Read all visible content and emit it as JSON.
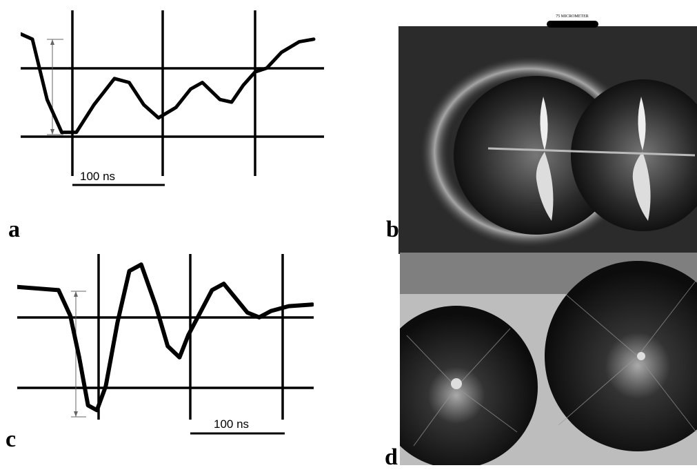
{
  "panels": {
    "a": {
      "label": "a",
      "scale_bar": "100 ns",
      "trace": [
        [
          0,
          0.18
        ],
        [
          0.04,
          0.22
        ],
        [
          0.09,
          0.68
        ],
        [
          0.14,
          0.93
        ],
        [
          0.19,
          0.93
        ],
        [
          0.25,
          0.72
        ],
        [
          0.32,
          0.52
        ],
        [
          0.37,
          0.55
        ],
        [
          0.42,
          0.72
        ],
        [
          0.47,
          0.82
        ],
        [
          0.53,
          0.74
        ],
        [
          0.58,
          0.6
        ],
        [
          0.62,
          0.55
        ],
        [
          0.68,
          0.68
        ],
        [
          0.72,
          0.7
        ],
        [
          0.76,
          0.57
        ],
        [
          0.8,
          0.47
        ],
        [
          0.84,
          0.44
        ],
        [
          0.89,
          0.32
        ],
        [
          0.95,
          0.24
        ],
        [
          1,
          0.22
        ]
      ]
    },
    "b": {
      "label": "b",
      "scale_bar_caption": "75 MICROMETER",
      "description": "crystallite spherulites, micrograph"
    },
    "c": {
      "label": "c",
      "scale_bar": "100 ns",
      "trace": [
        [
          0,
          0.18
        ],
        [
          0.14,
          0.2
        ],
        [
          0.18,
          0.36
        ],
        [
          0.21,
          0.62
        ],
        [
          0.24,
          0.92
        ],
        [
          0.27,
          0.95
        ],
        [
          0.3,
          0.8
        ],
        [
          0.34,
          0.4
        ],
        [
          0.38,
          0.08
        ],
        [
          0.42,
          0.04
        ],
        [
          0.47,
          0.3
        ],
        [
          0.51,
          0.55
        ],
        [
          0.55,
          0.62
        ],
        [
          0.58,
          0.48
        ],
        [
          0.62,
          0.34
        ],
        [
          0.66,
          0.2
        ],
        [
          0.7,
          0.16
        ],
        [
          0.74,
          0.25
        ],
        [
          0.78,
          0.34
        ],
        [
          0.82,
          0.37
        ],
        [
          0.86,
          0.33
        ],
        [
          0.92,
          0.3
        ],
        [
          1,
          0.29
        ]
      ]
    },
    "d": {
      "label": "d",
      "description": "crystallite spherulites, micrograph"
    }
  },
  "colors": {
    "trace": "#000000",
    "grid": "#000000",
    "micrograph_bg": "#1a1a1a"
  }
}
